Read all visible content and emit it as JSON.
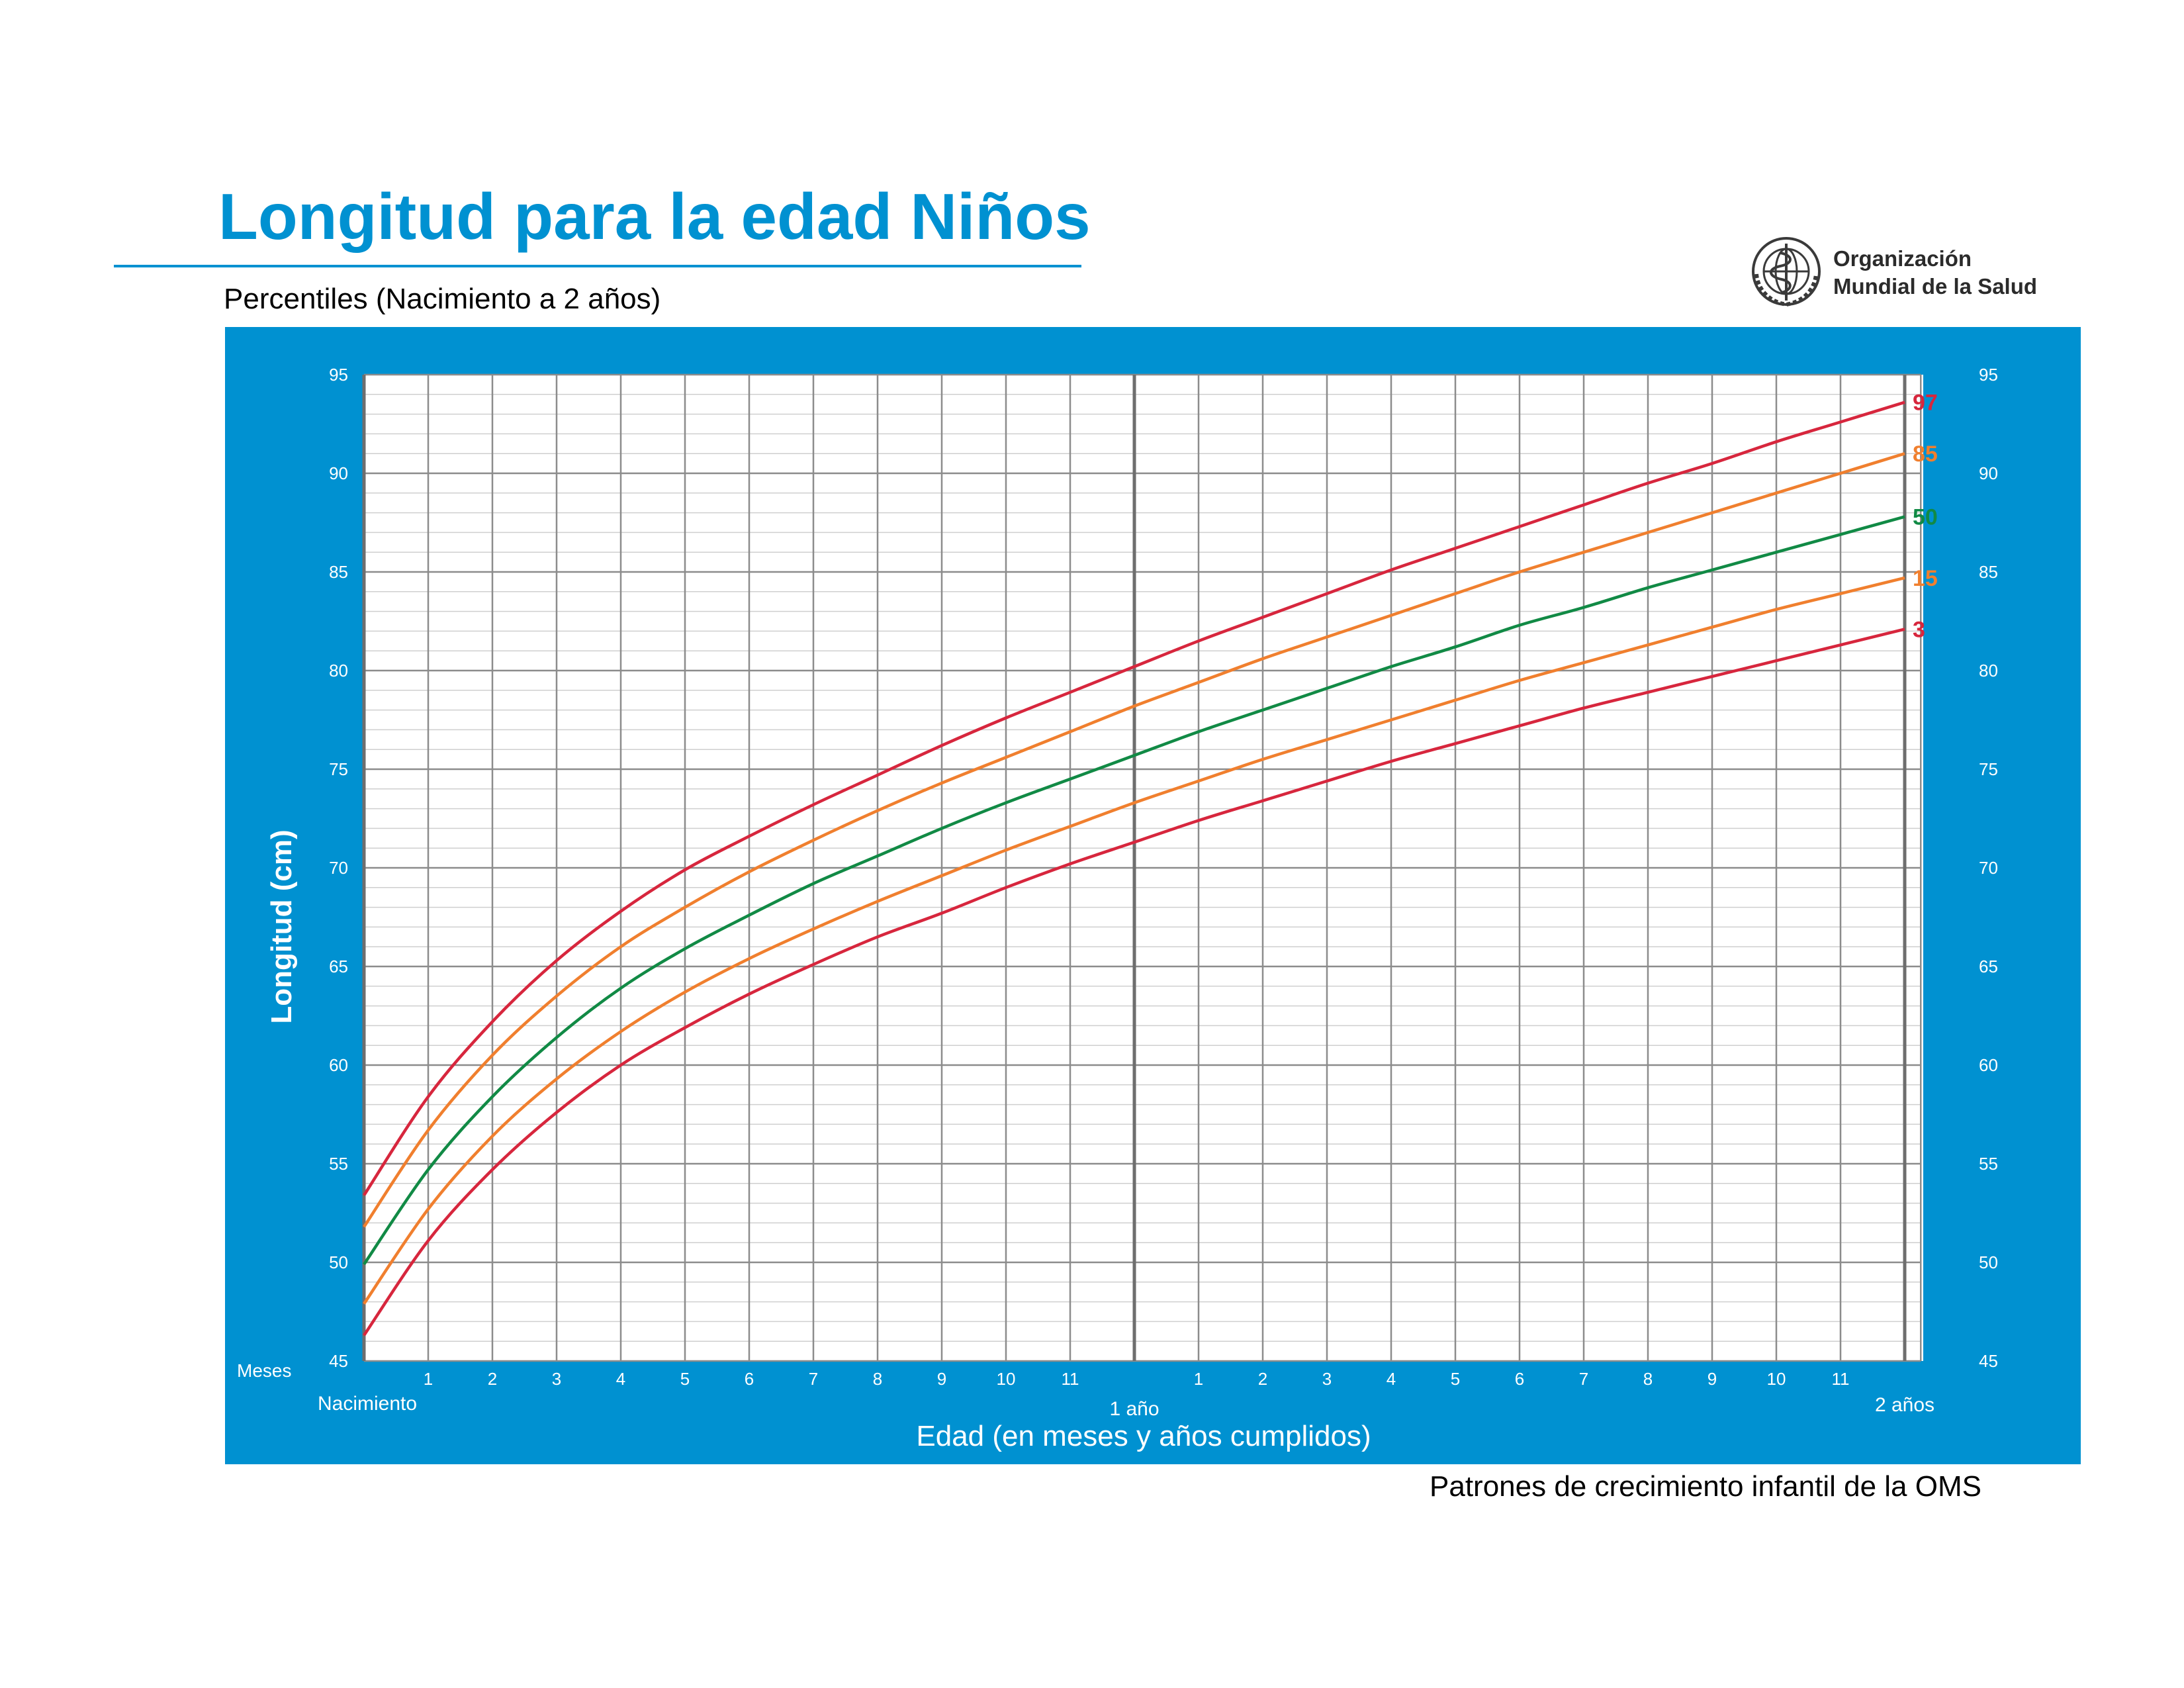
{
  "header": {
    "title": "Longitud para la edad Niños",
    "subtitle": "Percentiles (Nacimiento a 2 años)"
  },
  "logo": {
    "icon": "who-emblem-icon",
    "line1": "Organización",
    "line2": "Mundial de la Salud"
  },
  "footer": {
    "source": "Patrones de crecimiento infantil de la OMS"
  },
  "colors": {
    "brand_blue": "#0091d1",
    "p97": "#d7263d",
    "p85": "#f07f2e",
    "p50": "#118a45",
    "p15": "#f07f2e",
    "p3": "#d7263d",
    "grid_major": "#8c8c8c",
    "grid_minor": "#cfcfcf"
  },
  "chart_data": {
    "type": "line",
    "ylabel": "Longitud (cm)",
    "xlabel": "Edad (en meses y años cumplidos)",
    "x_unit_label": "Meses",
    "x_milestones": [
      {
        "month": 0,
        "label": "Nacimiento"
      },
      {
        "month": 12,
        "label": "1 año"
      },
      {
        "month": 24,
        "label": "2 años"
      }
    ],
    "x_tick_labels": [
      "1",
      "2",
      "3",
      "4",
      "5",
      "6",
      "7",
      "8",
      "9",
      "10",
      "11",
      "",
      "1",
      "2",
      "3",
      "4",
      "5",
      "6",
      "7",
      "8",
      "9",
      "10",
      "11",
      ""
    ],
    "xlim": [
      0,
      24.25
    ],
    "ylim": [
      45,
      95
    ],
    "yticks": [
      45,
      50,
      55,
      60,
      65,
      70,
      75,
      80,
      85,
      90,
      95
    ],
    "y_minor_step": 1,
    "grid": true,
    "x": [
      0,
      1,
      2,
      3,
      4,
      5,
      6,
      7,
      8,
      9,
      10,
      11,
      12,
      13,
      14,
      15,
      16,
      17,
      18,
      19,
      20,
      21,
      22,
      23,
      24
    ],
    "series": [
      {
        "name": "97",
        "color_key": "p97",
        "values": [
          53.4,
          58.4,
          62.2,
          65.3,
          67.8,
          69.9,
          71.6,
          73.2,
          74.7,
          76.2,
          77.6,
          78.9,
          80.2,
          81.5,
          82.7,
          83.9,
          85.1,
          86.2,
          87.3,
          88.4,
          89.5,
          90.5,
          91.6,
          92.6,
          93.6
        ]
      },
      {
        "name": "85",
        "color_key": "p85",
        "values": [
          51.8,
          56.7,
          60.5,
          63.5,
          66.0,
          68.0,
          69.8,
          71.4,
          72.9,
          74.3,
          75.6,
          76.9,
          78.2,
          79.4,
          80.6,
          81.7,
          82.8,
          83.9,
          85.0,
          86.0,
          87.0,
          88.0,
          89.0,
          90.0,
          91.0
        ]
      },
      {
        "name": "50",
        "color_key": "p50",
        "values": [
          49.9,
          54.7,
          58.4,
          61.4,
          63.9,
          65.9,
          67.6,
          69.2,
          70.6,
          72.0,
          73.3,
          74.5,
          75.7,
          76.9,
          78.0,
          79.1,
          80.2,
          81.2,
          82.3,
          83.2,
          84.2,
          85.1,
          86.0,
          86.9,
          87.8
        ]
      },
      {
        "name": "15",
        "color_key": "p15",
        "values": [
          47.9,
          52.7,
          56.4,
          59.3,
          61.7,
          63.7,
          65.4,
          66.9,
          68.3,
          69.6,
          70.9,
          72.1,
          73.3,
          74.4,
          75.5,
          76.5,
          77.5,
          78.5,
          79.5,
          80.4,
          81.3,
          82.2,
          83.1,
          83.9,
          84.7
        ]
      },
      {
        "name": "3",
        "color_key": "p3",
        "values": [
          46.3,
          51.1,
          54.7,
          57.6,
          60.0,
          61.9,
          63.6,
          65.1,
          66.5,
          67.7,
          69.0,
          70.2,
          71.3,
          72.4,
          73.4,
          74.4,
          75.4,
          76.3,
          77.2,
          78.1,
          78.9,
          79.7,
          80.5,
          81.3,
          82.1
        ]
      }
    ]
  }
}
